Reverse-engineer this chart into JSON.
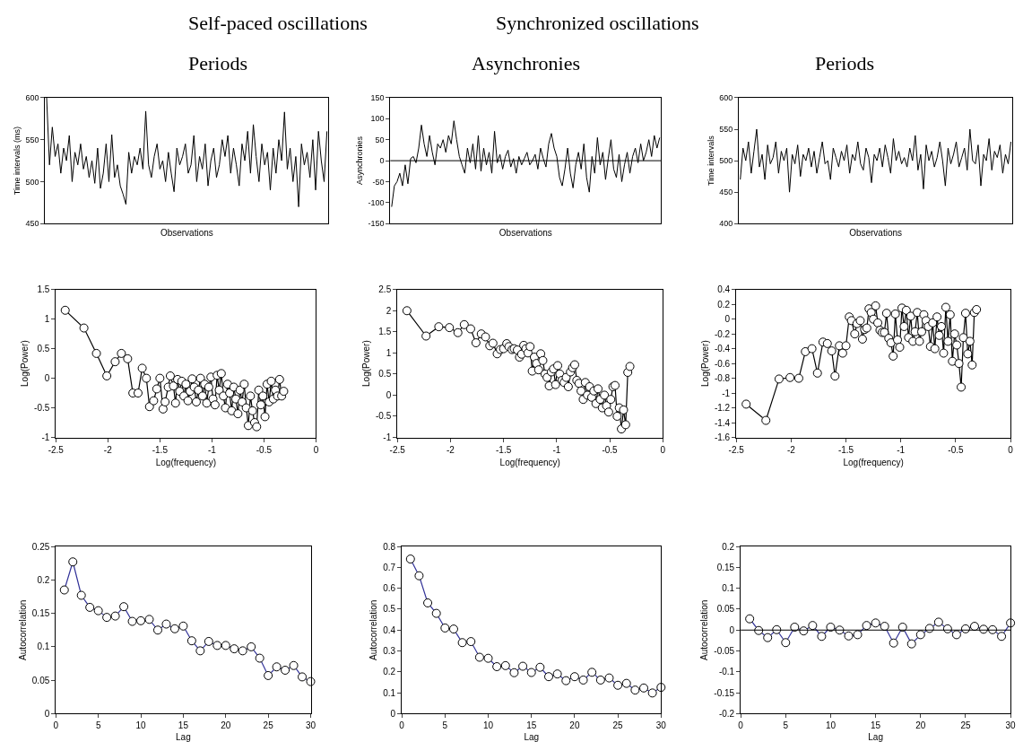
{
  "chart_data": [
    {
      "type": "line",
      "title": "Periods",
      "annotations": [
        "Self-paced oscillations"
      ],
      "xlabel": "Observations",
      "ylabel": "Time intervals (ms)",
      "tick_labels": "y",
      "ylim": [
        450,
        600
      ],
      "yticks": [
        450,
        500,
        550,
        600
      ],
      "categories": [
        null,
        null,
        null,
        null,
        null,
        null,
        null,
        null,
        null,
        null,
        null,
        null,
        null,
        null,
        null,
        null,
        null,
        null,
        null,
        null,
        null,
        null,
        null,
        null,
        null,
        null,
        null,
        null,
        null,
        null,
        null,
        null,
        null,
        null,
        null,
        null,
        null,
        null,
        null,
        null,
        null,
        null,
        null,
        null,
        null,
        null,
        null,
        null,
        null,
        null,
        null,
        null,
        null,
        null,
        null,
        null,
        null,
        null,
        null,
        null,
        null,
        null,
        null,
        null,
        null,
        null,
        null,
        null,
        null,
        null,
        null,
        null,
        null,
        null,
        null,
        null,
        null,
        null,
        null,
        null,
        null,
        null,
        null,
        null,
        null,
        null,
        null,
        null,
        null,
        null,
        null,
        null,
        null,
        null,
        null,
        null,
        null,
        null,
        null,
        null
      ],
      "series": [
        {
          "color": "#000000",
          "values": [
            600,
            520,
            565,
            530,
            545,
            510,
            540,
            525,
            555,
            500,
            535,
            520,
            545,
            515,
            530,
            505,
            525,
            498,
            540,
            492,
            510,
            545,
            500,
            556,
            505,
            520,
            495,
            485,
            473,
            535,
            510,
            530,
            520,
            540,
            515,
            584,
            520,
            505,
            530,
            545,
            515,
            525,
            500,
            535,
            510,
            488,
            540,
            520,
            530,
            545,
            510,
            520,
            555,
            500,
            530,
            515,
            545,
            495,
            525,
            540,
            505,
            520,
            550,
            530,
            555,
            510,
            540,
            520,
            495,
            545,
            525,
            560,
            510,
            568,
            530,
            500,
            545,
            520,
            535,
            490,
            540,
            510,
            550,
            525,
            583,
            515,
            540,
            500,
            530,
            470,
            545,
            520,
            535,
            505,
            550,
            490,
            560,
            525,
            500,
            560
          ]
        }
      ]
    },
    {
      "type": "line",
      "title": "Asynchronies",
      "annotations": [
        "Synchronized oscillations"
      ],
      "xlabel": "Observations",
      "ylabel": "Asynchronies",
      "tick_labels": "y",
      "ylim": [
        -150,
        150
      ],
      "yticks": [
        -150,
        -100,
        -50,
        0,
        50,
        100,
        150
      ],
      "ref_lines": [
        {
          "axis": "y",
          "value": 0,
          "color": "#000000"
        }
      ],
      "categories": [
        null,
        null,
        null,
        null,
        null,
        null,
        null,
        null,
        null,
        null,
        null,
        null,
        null,
        null,
        null,
        null,
        null,
        null,
        null,
        null,
        null,
        null,
        null,
        null,
        null,
        null,
        null,
        null,
        null,
        null,
        null,
        null,
        null,
        null,
        null,
        null,
        null,
        null,
        null,
        null,
        null,
        null,
        null,
        null,
        null,
        null,
        null,
        null,
        null,
        null,
        null,
        null,
        null,
        null,
        null,
        null,
        null,
        null,
        null,
        null,
        null,
        null,
        null,
        null,
        null,
        null,
        null,
        null,
        null,
        null,
        null,
        null,
        null,
        null,
        null,
        null,
        null,
        null,
        null,
        null,
        null,
        null,
        null,
        null,
        null,
        null,
        null,
        null,
        null,
        null,
        null,
        null,
        null,
        null,
        null,
        null,
        null,
        null,
        null,
        null
      ],
      "series": [
        {
          "color": "#000000",
          "values": [
            -110,
            -60,
            -50,
            -30,
            -60,
            -10,
            -55,
            5,
            10,
            -5,
            30,
            85,
            40,
            10,
            60,
            20,
            -10,
            40,
            30,
            50,
            20,
            60,
            40,
            95,
            50,
            10,
            -10,
            -30,
            30,
            -5,
            40,
            -20,
            60,
            -25,
            30,
            -10,
            20,
            -30,
            70,
            -5,
            15,
            -20,
            10,
            25,
            -15,
            5,
            -30,
            10,
            -10,
            5,
            20,
            -10,
            0,
            15,
            -20,
            30,
            5,
            -15,
            40,
            65,
            30,
            10,
            -40,
            -60,
            -20,
            30,
            -30,
            -65,
            -10,
            20,
            -20,
            40,
            -40,
            -75,
            10,
            -30,
            55,
            -10,
            20,
            -45,
            5,
            50,
            -20,
            -40,
            15,
            -50,
            -10,
            20,
            -30,
            10,
            30,
            -5,
            40,
            0,
            20,
            50,
            10,
            60,
            30,
            55
          ]
        }
      ]
    },
    {
      "type": "line",
      "title": "Periods",
      "xlabel": "Observations",
      "ylabel": "Time intervals",
      "tick_labels": "y",
      "ylim": [
        400,
        600
      ],
      "yticks": [
        400,
        450,
        500,
        550,
        600
      ],
      "categories": [
        null,
        null,
        null,
        null,
        null,
        null,
        null,
        null,
        null,
        null,
        null,
        null,
        null,
        null,
        null,
        null,
        null,
        null,
        null,
        null,
        null,
        null,
        null,
        null,
        null,
        null,
        null,
        null,
        null,
        null,
        null,
        null,
        null,
        null,
        null,
        null,
        null,
        null,
        null,
        null,
        null,
        null,
        null,
        null,
        null,
        null,
        null,
        null,
        null,
        null,
        null,
        null,
        null,
        null,
        null,
        null,
        null,
        null,
        null,
        null,
        null,
        null,
        null,
        null,
        null,
        null,
        null,
        null,
        null,
        null,
        null,
        null,
        null,
        null,
        null,
        null,
        null,
        null,
        null,
        null,
        null,
        null,
        null,
        null,
        null,
        null,
        null,
        null,
        null,
        null,
        null,
        null,
        null,
        null,
        null,
        null,
        null,
        null,
        null,
        null
      ],
      "series": [
        {
          "color": "#000000",
          "values": [
            470,
            520,
            500,
            530,
            480,
            515,
            550,
            490,
            510,
            470,
            525,
            495,
            505,
            530,
            480,
            515,
            500,
            520,
            450,
            510,
            495,
            525,
            475,
            510,
            500,
            520,
            490,
            515,
            480,
            505,
            530,
            495,
            500,
            470,
            520,
            505,
            490,
            515,
            500,
            525,
            480,
            510,
            500,
            530,
            495,
            485,
            520,
            505,
            465,
            510,
            500,
            520,
            490,
            525,
            505,
            480,
            535,
            500,
            515,
            495,
            505,
            490,
            520,
            500,
            540,
            485,
            510,
            455,
            525,
            500,
            515,
            490,
            505,
            530,
            500,
            460,
            520,
            495,
            510,
            530,
            490,
            505,
            520,
            485,
            550,
            500,
            495,
            525,
            460,
            510,
            500,
            535,
            485,
            515,
            505,
            525,
            480,
            510,
            495,
            530
          ]
        }
      ]
    },
    {
      "type": "line",
      "xlabel": "Log(frequency)",
      "ylabel": "Log(Power)",
      "marker": "circle",
      "xlim": [
        -2.5,
        0
      ],
      "xticks": [
        -2.5,
        -2,
        -1.5,
        -1,
        -0.5,
        0
      ],
      "ylim": [
        -1,
        1.5
      ],
      "yticks": [
        -1,
        -0.5,
        0,
        0.5,
        1,
        1.5
      ],
      "x": [
        -2.41,
        -2.23,
        -2.11,
        -2.01,
        -1.93,
        -1.87,
        -1.81,
        -1.76,
        -1.71,
        -1.67,
        -1.63,
        -1.6,
        -1.56,
        -1.53,
        -1.5,
        -1.47,
        -1.45,
        -1.42,
        -1.4,
        -1.37,
        -1.35,
        -1.33,
        -1.31,
        -1.29,
        -1.27,
        -1.25,
        -1.23,
        -1.21,
        -1.19,
        -1.17,
        -1.15,
        -1.13,
        -1.11,
        -1.09,
        -1.07,
        -1.05,
        -1.03,
        -1.01,
        -0.99,
        -0.97,
        -0.95,
        -0.93,
        -0.91,
        -0.89,
        -0.87,
        -0.85,
        -0.83,
        -0.81,
        -0.79,
        -0.77,
        -0.75,
        -0.73,
        -0.71,
        -0.69,
        -0.67,
        -0.65,
        -0.63,
        -0.61,
        -0.59,
        -0.57,
        -0.55,
        -0.53,
        -0.51,
        -0.49,
        -0.47,
        -0.45,
        -0.43,
        -0.41,
        -0.39,
        -0.37,
        -0.35,
        -0.33,
        -0.31
      ],
      "series": [
        {
          "color": "#000000",
          "values": [
            1.15,
            0.85,
            0.42,
            0.04,
            0.28,
            0.42,
            0.33,
            -0.25,
            -0.25,
            0.17,
            0.0,
            -0.48,
            -0.38,
            -0.18,
            0.0,
            -0.52,
            -0.4,
            -0.15,
            0.04,
            -0.13,
            -0.42,
            -0.02,
            -0.22,
            -0.05,
            -0.3,
            -0.1,
            -0.38,
            -0.22,
            -0.01,
            -0.15,
            -0.4,
            -0.2,
            0.0,
            -0.3,
            -0.1,
            -0.42,
            -0.15,
            0.02,
            -0.35,
            -0.45,
            0.05,
            -0.2,
            0.08,
            -0.3,
            -0.5,
            -0.1,
            -0.25,
            -0.55,
            -0.15,
            -0.35,
            -0.6,
            -0.2,
            -0.4,
            -0.1,
            -0.5,
            -0.8,
            -0.3,
            -0.55,
            -0.75,
            -0.82,
            -0.2,
            -0.45,
            -0.3,
            -0.65,
            -0.1,
            -0.4,
            -0.05,
            -0.35,
            -0.2,
            -0.3,
            -0.02,
            -0.3,
            -0.22
          ]
        }
      ]
    },
    {
      "type": "line",
      "xlabel": "Log(frequency)",
      "ylabel": "Log(Power)",
      "marker": "circle",
      "xlim": [
        -2.5,
        0
      ],
      "xticks": [
        -2.5,
        -2,
        -1.5,
        -1,
        -0.5,
        0
      ],
      "ylim": [
        -1,
        2.5
      ],
      "yticks": [
        -1,
        -0.5,
        0,
        0.5,
        1,
        1.5,
        2,
        2.5
      ],
      "x": [
        -2.41,
        -2.23,
        -2.11,
        -2.01,
        -1.93,
        -1.87,
        -1.81,
        -1.76,
        -1.71,
        -1.67,
        -1.63,
        -1.6,
        -1.56,
        -1.53,
        -1.5,
        -1.47,
        -1.45,
        -1.42,
        -1.4,
        -1.37,
        -1.35,
        -1.33,
        -1.31,
        -1.29,
        -1.27,
        -1.25,
        -1.23,
        -1.21,
        -1.19,
        -1.17,
        -1.15,
        -1.13,
        -1.11,
        -1.09,
        -1.07,
        -1.05,
        -1.03,
        -1.01,
        -0.99,
        -0.97,
        -0.95,
        -0.93,
        -0.91,
        -0.89,
        -0.87,
        -0.85,
        -0.83,
        -0.81,
        -0.79,
        -0.77,
        -0.75,
        -0.73,
        -0.71,
        -0.69,
        -0.67,
        -0.65,
        -0.63,
        -0.61,
        -0.59,
        -0.57,
        -0.55,
        -0.53,
        -0.51,
        -0.49,
        -0.47,
        -0.45,
        -0.43,
        -0.41,
        -0.39,
        -0.37,
        -0.35,
        -0.33,
        -0.31
      ],
      "series": [
        {
          "color": "#000000",
          "values": [
            2.0,
            1.4,
            1.62,
            1.6,
            1.48,
            1.67,
            1.57,
            1.24,
            1.45,
            1.38,
            1.17,
            1.23,
            0.98,
            1.08,
            1.1,
            1.22,
            1.15,
            1.08,
            1.1,
            1.07,
            0.9,
            0.97,
            1.18,
            1.1,
            1.0,
            1.15,
            0.57,
            0.9,
            0.75,
            0.6,
            0.98,
            0.82,
            0.5,
            0.42,
            0.22,
            0.55,
            0.62,
            0.25,
            0.7,
            0.5,
            0.35,
            0.3,
            0.42,
            0.2,
            0.55,
            0.65,
            0.72,
            0.35,
            0.28,
            0.1,
            -0.1,
            0.3,
            0.0,
            0.2,
            -0.05,
            0.1,
            -0.2,
            0.15,
            -0.1,
            -0.3,
            0.0,
            -0.25,
            -0.4,
            -0.1,
            0.2,
            0.23,
            -0.5,
            -0.3,
            -0.8,
            -0.35,
            -0.7,
            0.54,
            0.68
          ]
        }
      ]
    },
    {
      "type": "line",
      "xlabel": "Log(frequency)",
      "ylabel": "Log(Power)",
      "marker": "circle",
      "xlim": [
        -2.5,
        0
      ],
      "xticks": [
        -2.5,
        -2,
        -1.5,
        -1,
        -0.5,
        0
      ],
      "ylim": [
        -1.6,
        0.4
      ],
      "yticks": [
        -1.6,
        -1.4,
        -1.2,
        -1,
        -0.8,
        -0.6,
        -0.4,
        -0.2,
        0,
        0.2,
        0.4
      ],
      "x": [
        -2.41,
        -2.23,
        -2.11,
        -2.01,
        -1.93,
        -1.87,
        -1.81,
        -1.76,
        -1.71,
        -1.67,
        -1.63,
        -1.6,
        -1.56,
        -1.53,
        -1.5,
        -1.47,
        -1.45,
        -1.42,
        -1.4,
        -1.37,
        -1.35,
        -1.33,
        -1.31,
        -1.29,
        -1.27,
        -1.25,
        -1.23,
        -1.21,
        -1.19,
        -1.17,
        -1.15,
        -1.13,
        -1.11,
        -1.09,
        -1.07,
        -1.05,
        -1.03,
        -1.01,
        -0.99,
        -0.97,
        -0.95,
        -0.93,
        -0.91,
        -0.89,
        -0.87,
        -0.85,
        -0.83,
        -0.81,
        -0.79,
        -0.77,
        -0.75,
        -0.73,
        -0.71,
        -0.69,
        -0.67,
        -0.65,
        -0.63,
        -0.61,
        -0.59,
        -0.57,
        -0.55,
        -0.53,
        -0.51,
        -0.49,
        -0.47,
        -0.45,
        -0.43,
        -0.41,
        -0.39,
        -0.37,
        -0.35,
        -0.33,
        -0.31
      ],
      "series": [
        {
          "color": "#000000",
          "values": [
            -1.15,
            -1.37,
            -0.81,
            -0.79,
            -0.8,
            -0.44,
            -0.4,
            -0.73,
            -0.31,
            -0.33,
            -0.43,
            -0.77,
            -0.36,
            -0.46,
            -0.36,
            0.03,
            -0.02,
            -0.2,
            -0.06,
            -0.02,
            -0.27,
            -0.14,
            -0.12,
            0.14,
            0.09,
            0.0,
            0.18,
            -0.05,
            -0.15,
            -0.18,
            -0.18,
            0.08,
            -0.26,
            -0.32,
            -0.5,
            0.07,
            -0.28,
            -0.38,
            0.15,
            -0.1,
            0.12,
            -0.25,
            0.04,
            -0.3,
            -0.17,
            0.09,
            -0.3,
            -0.17,
            0.06,
            -0.02,
            -0.1,
            -0.37,
            -0.05,
            -0.4,
            0.03,
            -0.22,
            -0.1,
            -0.46,
            0.16,
            -0.3,
            0.06,
            -0.57,
            -0.2,
            -0.35,
            -0.6,
            -0.92,
            -0.25,
            0.08,
            -0.47,
            -0.3,
            -0.62,
            0.09,
            0.13
          ]
        }
      ]
    },
    {
      "type": "line",
      "xlabel": "Lag",
      "ylabel": "Autocorrelation",
      "marker": "circle",
      "xlim": [
        0,
        30
      ],
      "xticks": [
        0,
        5,
        10,
        15,
        20,
        25,
        30
      ],
      "ylim": [
        0,
        0.25
      ],
      "yticks": [
        0,
        0.05,
        0.1,
        0.15,
        0.2,
        0.25
      ],
      "x": [
        1,
        2,
        3,
        4,
        5,
        6,
        7,
        8,
        9,
        10,
        11,
        12,
        13,
        14,
        15,
        16,
        17,
        18,
        19,
        20,
        21,
        22,
        23,
        24,
        25,
        26,
        27,
        28,
        29,
        30
      ],
      "series": [
        {
          "color": "#333399",
          "values": [
            0.185,
            0.227,
            0.177,
            0.159,
            0.154,
            0.144,
            0.146,
            0.16,
            0.138,
            0.139,
            0.141,
            0.125,
            0.134,
            0.127,
            0.131,
            0.109,
            0.094,
            0.108,
            0.102,
            0.102,
            0.097,
            0.094,
            0.1,
            0.083,
            0.057,
            0.07,
            0.065,
            0.072,
            0.055,
            0.048
          ]
        }
      ]
    },
    {
      "type": "line",
      "xlabel": "Lag",
      "ylabel": "Autocorrelation",
      "marker": "circle",
      "xlim": [
        0,
        30
      ],
      "xticks": [
        0,
        5,
        10,
        15,
        20,
        25,
        30
      ],
      "ylim": [
        0,
        0.8
      ],
      "yticks": [
        0,
        0.1,
        0.2,
        0.3,
        0.4,
        0.5,
        0.6,
        0.7,
        0.8
      ],
      "x": [
        1,
        2,
        3,
        4,
        5,
        6,
        7,
        8,
        9,
        10,
        11,
        12,
        13,
        14,
        15,
        16,
        17,
        18,
        19,
        20,
        21,
        22,
        23,
        24,
        25,
        26,
        27,
        28,
        29,
        30
      ],
      "series": [
        {
          "color": "#333399",
          "values": [
            0.74,
            0.66,
            0.53,
            0.48,
            0.41,
            0.405,
            0.34,
            0.345,
            0.27,
            0.265,
            0.225,
            0.23,
            0.196,
            0.227,
            0.197,
            0.222,
            0.177,
            0.19,
            0.158,
            0.177,
            0.161,
            0.198,
            0.161,
            0.171,
            0.136,
            0.145,
            0.113,
            0.123,
            0.099,
            0.126
          ]
        }
      ]
    },
    {
      "type": "line",
      "xlabel": "Lag",
      "ylabel": "Autocorrelation",
      "marker": "circle",
      "xlim": [
        0,
        30
      ],
      "xticks": [
        0,
        5,
        10,
        15,
        20,
        25,
        30
      ],
      "ylim": [
        -0.2,
        0.2
      ],
      "yticks": [
        -0.2,
        -0.15,
        -0.1,
        -0.05,
        0,
        0.05,
        0.1,
        0.15,
        0.2
      ],
      "ref_lines": [
        {
          "axis": "y",
          "value": 0,
          "color": "#000000"
        }
      ],
      "x": [
        1,
        2,
        3,
        4,
        5,
        6,
        7,
        8,
        9,
        10,
        11,
        12,
        13,
        14,
        15,
        16,
        17,
        18,
        19,
        20,
        21,
        22,
        23,
        24,
        25,
        26,
        27,
        28,
        29,
        30
      ],
      "series": [
        {
          "color": "#333399",
          "values": [
            0.027,
            -0.001,
            -0.018,
            0.001,
            -0.03,
            0.007,
            -0.002,
            0.011,
            -0.015,
            0.007,
            0.0,
            -0.014,
            -0.011,
            0.011,
            0.017,
            0.009,
            -0.031,
            0.007,
            -0.033,
            -0.011,
            0.004,
            0.019,
            0.003,
            -0.011,
            0.003,
            0.009,
            0.002,
            0.001,
            -0.015,
            0.017
          ]
        }
      ]
    }
  ]
}
